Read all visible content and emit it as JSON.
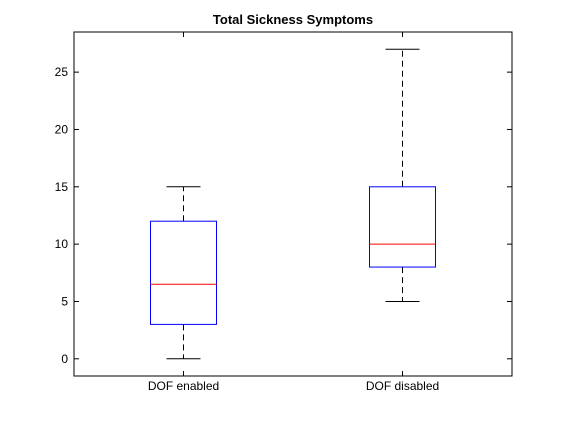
{
  "chart_data": {
    "type": "boxplot",
    "title": "Total Sickness Symptoms",
    "xlabel": "",
    "ylabel": "",
    "ylim": [
      -1.5,
      28.5
    ],
    "yticks": [
      0,
      5,
      10,
      15,
      20,
      25
    ],
    "grid": false,
    "categories": [
      "DOF enabled",
      "DOF disabled"
    ],
    "boxes": [
      {
        "category": "DOF enabled",
        "min": 0,
        "q1": 3,
        "median": 6.5,
        "q3": 12,
        "max": 15
      },
      {
        "category": "DOF disabled",
        "min": 5,
        "q1": 8,
        "median": 10,
        "q3": 15,
        "max": 27
      }
    ],
    "colors": {
      "box": "#0000ff",
      "median": "#ff0000",
      "whisker": "#000000",
      "axes": "#000000"
    }
  }
}
